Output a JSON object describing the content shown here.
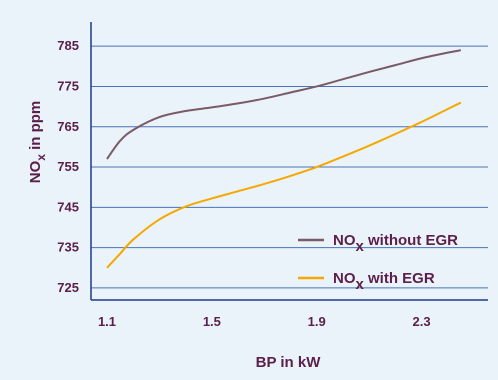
{
  "chart_data": {
    "type": "line",
    "xlabel": "BP in kW",
    "ylabel_main": "NO",
    "ylabel_sub": "x",
    "ylabel_rest": " in ppm",
    "xlim": [
      1.1,
      2.5
    ],
    "ylim": [
      722,
      791
    ],
    "xticks": [
      "1.1",
      "1.5",
      "1.9",
      "2.3"
    ],
    "xtick_values": [
      1.1,
      1.5,
      1.9,
      2.3
    ],
    "yticks": [
      "785",
      "775",
      "765",
      "755",
      "745",
      "735",
      "725"
    ],
    "ytick_values": [
      785,
      775,
      765,
      755,
      745,
      735,
      725
    ],
    "grid": "horizontal",
    "legend_position": "bottom-right",
    "series": [
      {
        "name_main": "NO",
        "name_sub": "x",
        "name_rest": " without EGR",
        "color": "#7a5a66",
        "x": [
          1.1,
          1.15,
          1.2,
          1.3,
          1.4,
          1.5,
          1.6,
          1.7,
          1.8,
          1.9,
          2.0,
          2.1,
          2.2,
          2.3,
          2.4,
          2.45
        ],
        "y": [
          757,
          761.5,
          764.2,
          767.4,
          768.9,
          769.8,
          770.8,
          772,
          773.5,
          775,
          776.8,
          778.6,
          780.3,
          782,
          783.4,
          784
        ]
      },
      {
        "name_main": "NO",
        "name_sub": "x",
        "name_rest": " with EGR",
        "color": "#f5a800",
        "x": [
          1.1,
          1.15,
          1.2,
          1.3,
          1.4,
          1.5,
          1.6,
          1.7,
          1.8,
          1.9,
          2.0,
          2.1,
          2.2,
          2.3,
          2.4,
          2.45
        ],
        "y": [
          730,
          733.5,
          737,
          742,
          745.2,
          747.2,
          749,
          750.8,
          752.8,
          755,
          757.6,
          760.3,
          763.2,
          766.2,
          769.4,
          771
        ]
      }
    ]
  },
  "colors": {
    "background": "#e9f3f9",
    "axis": "#1f3a8a",
    "grid": "#4a73b5",
    "text": "#5b1f4a"
  }
}
